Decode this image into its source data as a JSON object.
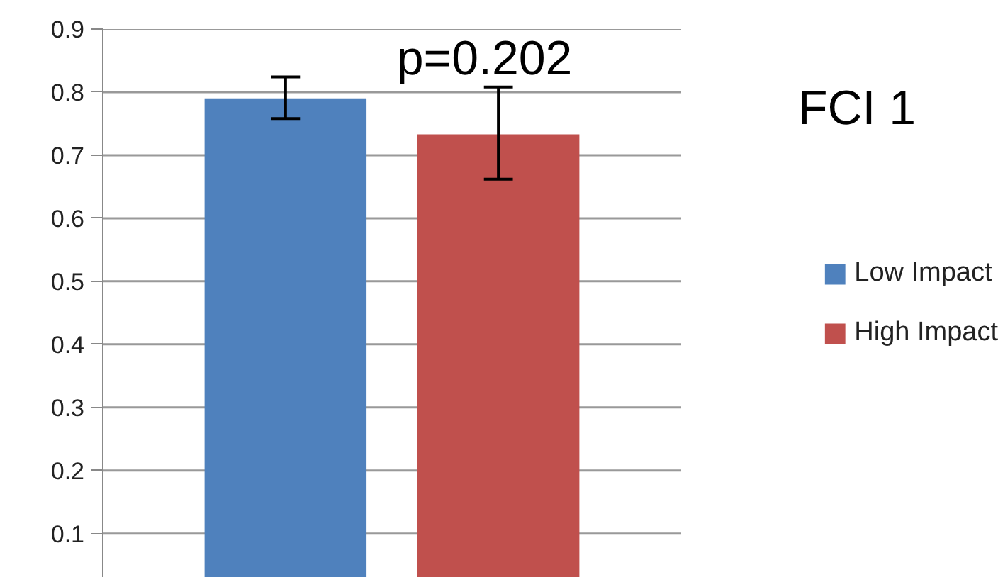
{
  "chart_data": {
    "type": "bar",
    "title": "FCI 1",
    "categories": [
      null
    ],
    "series": [
      {
        "name": "Low Impact",
        "color": "#4f81bd",
        "values": [
          0.79
        ],
        "errors": [
          [
            0.758,
            0.824
          ]
        ]
      },
      {
        "name": "High Impact",
        "color": "#c0504d",
        "values": [
          0.733
        ],
        "errors": [
          [
            0.662,
            0.808
          ]
        ]
      }
    ],
    "ylim": [
      0.03,
      0.9
    ],
    "yticks": [
      0.1,
      0.2,
      0.3,
      0.4,
      0.5,
      0.6,
      0.7,
      0.8,
      0.9
    ],
    "annotations": [
      "p=0.202"
    ],
    "grid": "y",
    "legend": "right"
  }
}
